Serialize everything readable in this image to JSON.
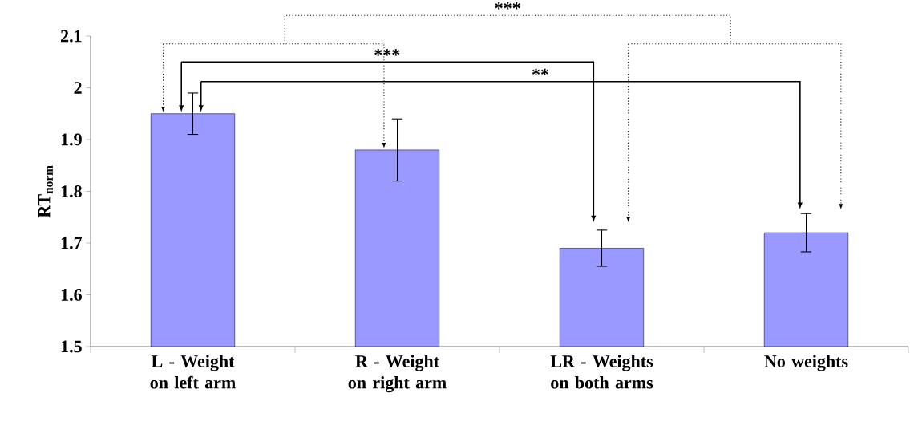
{
  "chart_data": {
    "type": "bar",
    "ylabel": "RT$_{norm}$",
    "categories": [
      "L - Weight on left arm",
      "R - Weight on right arm",
      "LR - Weights on both arms",
      "No weights"
    ],
    "values": [
      1.95,
      1.88,
      1.69,
      1.72
    ],
    "errors": [
      0.04,
      0.06,
      0.035,
      0.037
    ],
    "color": "#9999ff",
    "ylim": [
      1.5,
      2.1
    ],
    "yticks": [
      1.5,
      1.6,
      1.7,
      1.8,
      1.9,
      2,
      2.1
    ],
    "grid": false,
    "annotations": [
      "***",
      "***",
      "**"
    ]
  }
}
